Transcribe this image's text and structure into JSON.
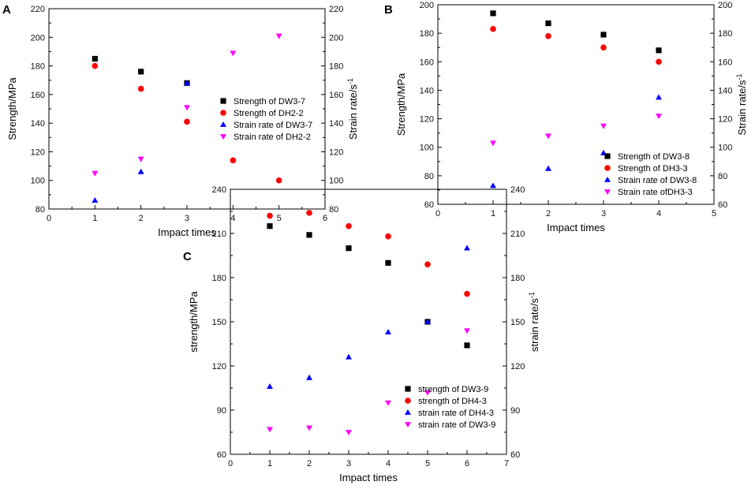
{
  "chart_data": [
    {
      "panel": "A",
      "type": "scatter",
      "xlabel": "Impact times",
      "ylabel": "Strength/MPa",
      "y2label": "Strain rate/s",
      "y2label_sup": "-1",
      "xlim": [
        0,
        6
      ],
      "ylim": [
        80,
        220
      ],
      "y2lim": [
        80,
        220
      ],
      "xticks": [
        "0",
        "1",
        "2",
        "3",
        "4",
        "5",
        "6"
      ],
      "yticks": [
        "80",
        "100",
        "120",
        "140",
        "160",
        "180",
        "200",
        "220"
      ],
      "y2ticks": [
        "80",
        "100",
        "120",
        "140",
        "160",
        "180",
        "200",
        "220"
      ],
      "series": [
        {
          "name": "Strength of DW3-7",
          "marker": "square",
          "color": "#000000",
          "axis": "left",
          "x": [
            1,
            2,
            3
          ],
          "y": [
            185,
            176,
            168
          ]
        },
        {
          "name": "Strength of DH2-2",
          "marker": "circle",
          "color": "#ff0000",
          "axis": "left",
          "x": [
            1,
            2,
            3,
            4,
            5
          ],
          "y": [
            180,
            164,
            141,
            114,
            100
          ]
        },
        {
          "name": "Strain rate of DW3-7",
          "marker": "triangle-up",
          "color": "#0000ff",
          "axis": "right",
          "x": [
            1,
            2,
            3
          ],
          "y": [
            86,
            106,
            168
          ]
        },
        {
          "name": "Strain rate of DH2-2",
          "marker": "triangle-down",
          "color": "#ff00ff",
          "axis": "right",
          "x": [
            1,
            2,
            3,
            4,
            5
          ],
          "y": [
            105,
            115,
            151,
            189,
            201
          ]
        }
      ],
      "legend_position": "center-right"
    },
    {
      "panel": "B",
      "type": "scatter",
      "xlabel": "Impact times",
      "ylabel": "Strength/MPa",
      "y2label": "Strain rate/s",
      "y2label_sup": "-1",
      "xlim": [
        0,
        5
      ],
      "ylim": [
        60,
        200
      ],
      "y2lim": [
        60,
        200
      ],
      "xticks": [
        "0",
        "1",
        "2",
        "3",
        "4",
        "5"
      ],
      "yticks": [
        "60",
        "80",
        "100",
        "120",
        "140",
        "160",
        "180",
        "200"
      ],
      "y2ticks": [
        "60",
        "80",
        "100",
        "120",
        "140",
        "160",
        "180",
        "200"
      ],
      "series": [
        {
          "name": "Strength of DW3-8",
          "marker": "square",
          "color": "#000000",
          "axis": "left",
          "x": [
            1,
            2,
            3,
            4
          ],
          "y": [
            194,
            187,
            179,
            168
          ]
        },
        {
          "name": "Strength of DH3-3",
          "marker": "circle",
          "color": "#ff0000",
          "axis": "left",
          "x": [
            1,
            2,
            3,
            4
          ],
          "y": [
            183,
            178,
            170,
            160
          ]
        },
        {
          "name": "Strain rate of DW3-8",
          "marker": "triangle-up",
          "color": "#0000ff",
          "axis": "right",
          "x": [
            1,
            2,
            3,
            4
          ],
          "y": [
            73,
            85,
            96,
            135
          ]
        },
        {
          "name": "Strain rate ofDH3-3",
          "marker": "triangle-down",
          "color": "#ff00ff",
          "axis": "right",
          "x": [
            1,
            2,
            3,
            4
          ],
          "y": [
            103,
            108,
            115,
            122
          ]
        }
      ],
      "legend_position": "bottom-right"
    },
    {
      "panel": "C",
      "type": "scatter",
      "xlabel": "Impact times",
      "ylabel": "strength/MPa",
      "y2label": "strain rate/s",
      "y2label_sup": "-1",
      "xlim": [
        0,
        7
      ],
      "ylim": [
        60,
        240
      ],
      "y2lim": [
        60,
        240
      ],
      "xticks": [
        "0",
        "1",
        "2",
        "3",
        "4",
        "5",
        "6",
        "7"
      ],
      "yticks": [
        "60",
        "90",
        "120",
        "150",
        "180",
        "210",
        "240"
      ],
      "y2ticks": [
        "60",
        "90",
        "120",
        "150",
        "180",
        "210",
        "240"
      ],
      "series": [
        {
          "name": "strength of DW3-9",
          "marker": "square",
          "color": "#000000",
          "axis": "left",
          "x": [
            1,
            2,
            3,
            4,
            5,
            6
          ],
          "y": [
            215,
            209,
            200,
            190,
            150,
            134
          ]
        },
        {
          "name": "strength of DH4-3",
          "marker": "circle",
          "color": "#ff0000",
          "axis": "left",
          "x": [
            1,
            2,
            3,
            4,
            5,
            6
          ],
          "y": [
            222,
            224,
            215,
            208,
            189,
            169
          ]
        },
        {
          "name": "strain rate of DH4-3",
          "marker": "triangle-up",
          "color": "#0000ff",
          "axis": "right",
          "x": [
            1,
            2,
            3,
            4,
            5,
            6
          ],
          "y": [
            106,
            112,
            126,
            143,
            150,
            200
          ]
        },
        {
          "name": "strain rate of DW3-9",
          "marker": "triangle-down",
          "color": "#ff00ff",
          "axis": "right",
          "x": [
            1,
            2,
            3,
            4,
            5,
            6
          ],
          "y": [
            77,
            78,
            75,
            95,
            102,
            144
          ]
        }
      ],
      "legend_position": "bottom-right"
    }
  ]
}
